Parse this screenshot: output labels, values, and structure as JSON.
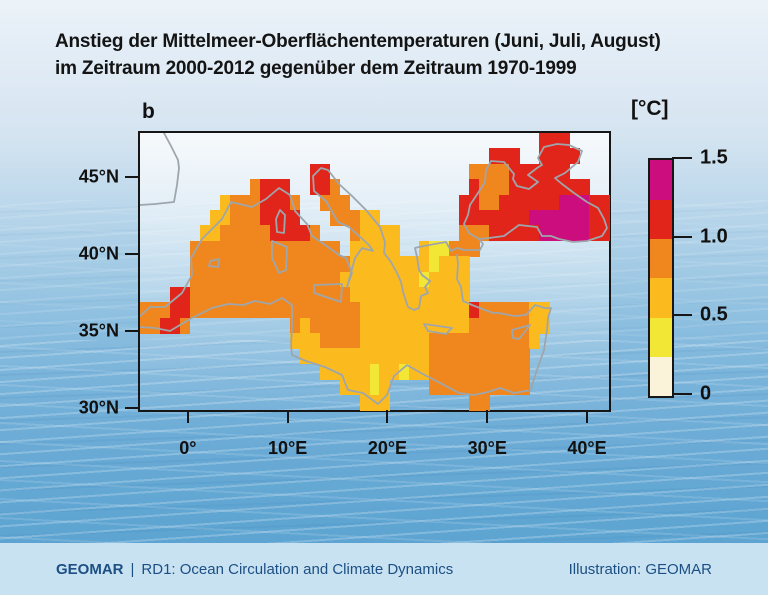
{
  "title": {
    "line1": "Anstieg der Mittelmeer-Oberflächentemperaturen (Juni, Juli, August)",
    "line2": "im Zeitraum 2000-2012 gegenüber dem Zeitraum 1970-1999"
  },
  "panel_label": "b",
  "footer": {
    "org": "GEOMAR",
    "separator": "|",
    "department": "RD1: Ocean Circulation and Climate Dynamics",
    "credit": "Illustration: GEOMAR"
  },
  "chart_data": {
    "type": "heatmap",
    "title": "Anstieg der Mittelmeer-Oberflächentemperaturen (Juni, Juli, August) im Zeitraum 2000-2012 gegenüber dem Zeitraum 1970-1999",
    "panel": "b",
    "x_axis": {
      "range_lon": [
        -5,
        42
      ],
      "ticks": [
        {
          "lon": 0,
          "label": "0°"
        },
        {
          "lon": 10,
          "label": "10°E"
        },
        {
          "lon": 20,
          "label": "20°E"
        },
        {
          "lon": 30,
          "label": "30°E"
        },
        {
          "lon": 40,
          "label": "40°E"
        }
      ]
    },
    "y_axis": {
      "range_lat": [
        30,
        48
      ],
      "ticks": [
        {
          "lat": 45,
          "label": "45°N"
        },
        {
          "lat": 40,
          "label": "40°N"
        },
        {
          "lat": 35,
          "label": "35°N"
        },
        {
          "lat": 30,
          "label": "30°N"
        }
      ]
    },
    "colorbar": {
      "unit": "[°C]",
      "range": [
        0,
        1.5
      ],
      "ticks": [
        {
          "value": 1.5,
          "label": "1.5"
        },
        {
          "value": 1.0,
          "label": "1.0"
        },
        {
          "value": 0.5,
          "label": "0.5"
        },
        {
          "value": 0,
          "label": "0"
        }
      ],
      "segments_bottom_to_top": [
        {
          "range": [
            0,
            0.25
          ],
          "color": "#FAF3DA"
        },
        {
          "range": [
            0.25,
            0.5
          ],
          "color": "#F2E735"
        },
        {
          "range": [
            0.5,
            0.75
          ],
          "color": "#FBBB1F"
        },
        {
          "range": [
            0.75,
            1.0
          ],
          "color": "#F0861E"
        },
        {
          "range": [
            1.0,
            1.25
          ],
          "color": "#E2251B"
        },
        {
          "range": [
            1.25,
            1.5
          ],
          "color": "#CC0D7D"
        }
      ]
    },
    "grid": {
      "description": "Sea-surface temperature anomaly cells (°C). Rows top-to-bottom = lat 48N to 30N in 1° bands, columns left-to-right = lon 5W to 42E in 1° bands. Characters: . = no data, 1 = 0-0.25, 2 = 0.25-0.5, 3 = 0.5-0.75, 4 = 0.75-1.0, 5 = 1.0-1.25, 6 = 1.25-1.5",
      "lon_min": -5,
      "lon_max": 42,
      "lat_min": 30,
      "lat_max": 48,
      "level_colors": {
        "1": "#FAF3DA",
        "2": "#F2E735",
        "3": "#FBBB1F",
        "4": "#F0861E",
        "5": "#E2251B",
        "6": "#CC0D7D"
      },
      "rows": [
        "........................................555....",
        "...................................555..5555...",
        ".................55..............4444555555....",
        "...........4555..554.............544455555555..",
        "........34445554..444...........554455555566655",
        ".......334445555...44433........555555566666655",
        "......334444455554...43333......444555556666655",
        ".....444444444444444.33333..322444.............",
        ".....4444444444444444333333332333..............",
        ".....4444444444444443333333323333..............",
        "...554444444444444444333333333333..............",
        "44455444444444444444443333333333354444433......",
        "44554..........43444443333333333344444433......",
        "...............3334444333333344444444443.......",
        "................33333333333334444444444........",
        "..................333332332334444444444........",
        "....................33323....4444444444........",
        "......................333........44............"
      ]
    }
  }
}
